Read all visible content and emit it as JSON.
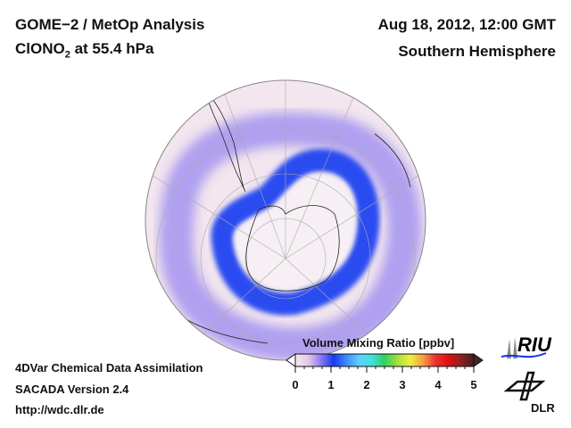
{
  "header": {
    "title_line1": "GOME−2 / MetOp Analysis",
    "species_prefix": "ClONO",
    "species_subscript": "2",
    "species_suffix": " at 55.4 hPa",
    "date": "Aug 18, 2012, 12:00 GMT",
    "region": "Southern Hemisphere"
  },
  "footer": {
    "line1": "4DVar Chemical Data Assimilation",
    "line2": "SACADA Version 2.4",
    "line3": "http://wdc.dlr.de"
  },
  "colorbar": {
    "title": "Volume Mixing Ratio [ppbv]",
    "ticks": [
      "0",
      "1",
      "2",
      "3",
      "4",
      "5"
    ],
    "range": [
      0,
      5
    ],
    "colors": [
      "#f4e8ee",
      "#e6c8e6",
      "#8a7cf0",
      "#1838f0",
      "#3a8cff",
      "#60d0ff",
      "#40e0e0",
      "#30d060",
      "#a0e040",
      "#f0f040",
      "#f8a040",
      "#f03030",
      "#e01010",
      "#902020",
      "#402020"
    ]
  },
  "logos": {
    "riu": "RIU",
    "dlr": "DLR"
  },
  "colors": {
    "ring": "#2a4cf0",
    "halo": "#9a8cf0",
    "background": "#f3e6ee",
    "vortex_core": "#f6f0f4"
  }
}
